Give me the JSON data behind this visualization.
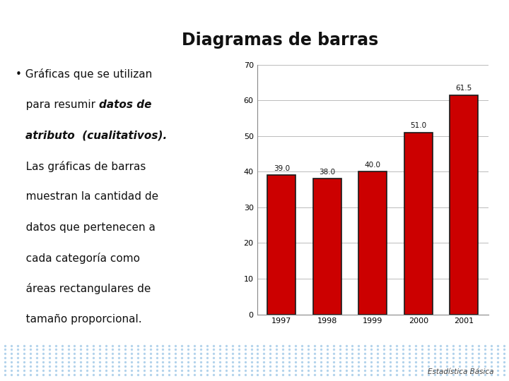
{
  "title": "Diagramas de barras",
  "categories": [
    "1997",
    "1998",
    "1999",
    "2000",
    "2001"
  ],
  "values": [
    39.0,
    38.0,
    40.0,
    51.0,
    61.5
  ],
  "bar_color": "#CC0000",
  "bar_edge_color": "#1a1a1a",
  "bar_edge_width": 1.2,
  "ylim": [
    0,
    70
  ],
  "yticks": [
    0,
    10,
    20,
    30,
    40,
    50,
    60,
    70
  ],
  "bg_color": "#ffffff",
  "header_bar1_color": "#994477",
  "header_bar2_color": "#2A9090",
  "footer_text": "Estadística Básica",
  "footer_bg_color": "#c8dff0",
  "grid_color": "#bbbbbb",
  "label_fontsize": 8,
  "value_label_fontsize": 7.5
}
